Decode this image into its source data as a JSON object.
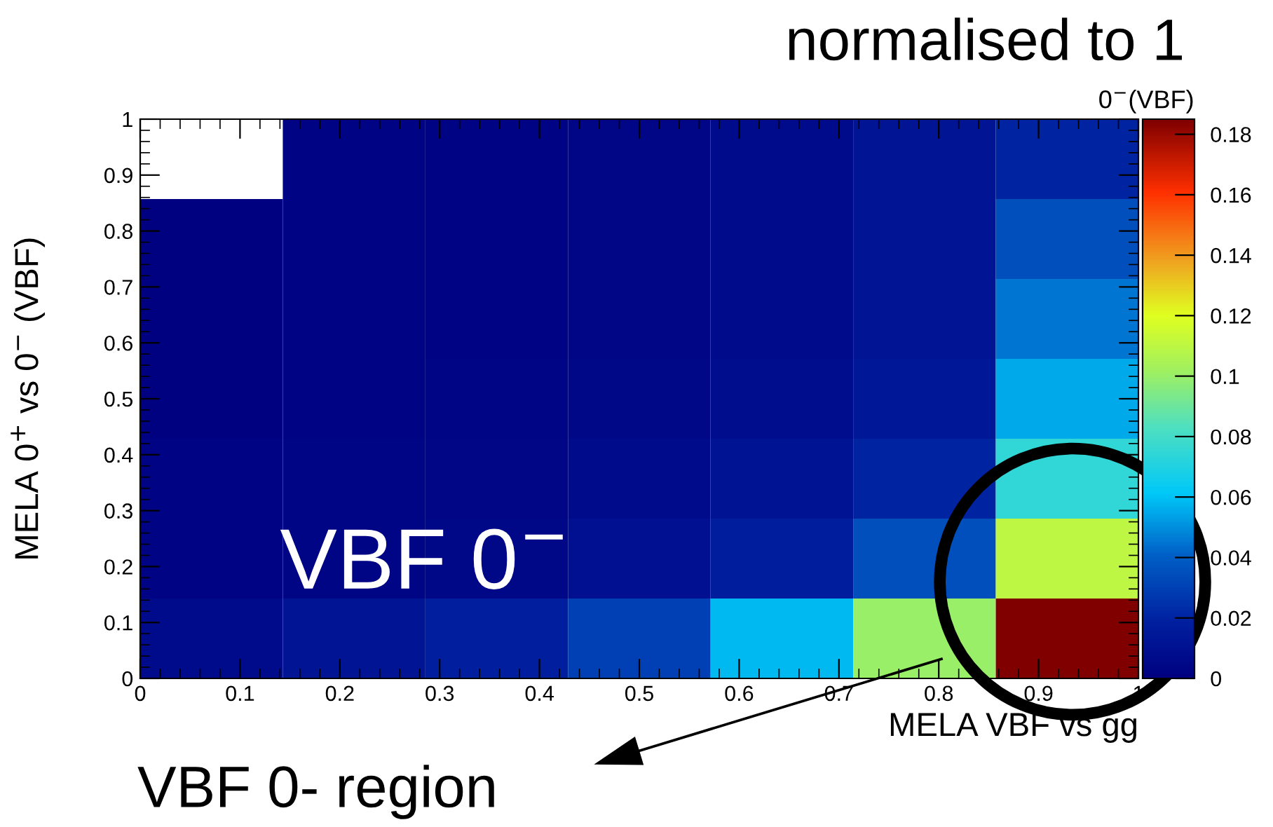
{
  "chart_data": {
    "type": "heatmap",
    "title": "normalised to 1",
    "xlabel": "MELA VBF vs gg",
    "ylabel": "MELA 0$^{+}$ vs 0$^{−}$ (VBF)",
    "clabel": "0$^{−}$(VBF)",
    "cells": [
      [
        null,
        0.002,
        0.002,
        0.004,
        0.007,
        0.012,
        0.02
      ],
      [
        0.001,
        0.002,
        0.002,
        0.004,
        0.007,
        0.012,
        0.035
      ],
      [
        0.001,
        0.002,
        0.002,
        0.004,
        0.007,
        0.012,
        0.045
      ],
      [
        0.001,
        0.002,
        0.003,
        0.005,
        0.008,
        0.014,
        0.055
      ],
      [
        0.002,
        0.003,
        0.004,
        0.007,
        0.011,
        0.02,
        0.075
      ],
      [
        0.002,
        0.003,
        0.005,
        0.01,
        0.017,
        0.035,
        0.11
      ],
      [
        0.007,
        0.012,
        0.018,
        0.03,
        0.058,
        0.1,
        0.185
      ]
    ],
    "xlim": [
      0,
      1
    ],
    "ylim": [
      0,
      1
    ],
    "xticks": [
      0,
      0.1,
      0.2,
      0.3,
      0.4,
      0.5,
      0.6,
      0.7,
      0.8,
      0.9,
      1
    ],
    "yticks": [
      0,
      0.1,
      0.2,
      0.3,
      0.4,
      0.5,
      0.6,
      0.7,
      0.8,
      0.9,
      1
    ],
    "clim": [
      0,
      0.185
    ],
    "cticks": [
      0,
      0.02,
      0.04,
      0.06,
      0.08,
      0.1,
      0.12,
      0.14,
      0.16,
      0.18
    ],
    "annotations": [
      "VBF 0$^{−}$",
      "VBF 0- region"
    ],
    "grid": false
  }
}
